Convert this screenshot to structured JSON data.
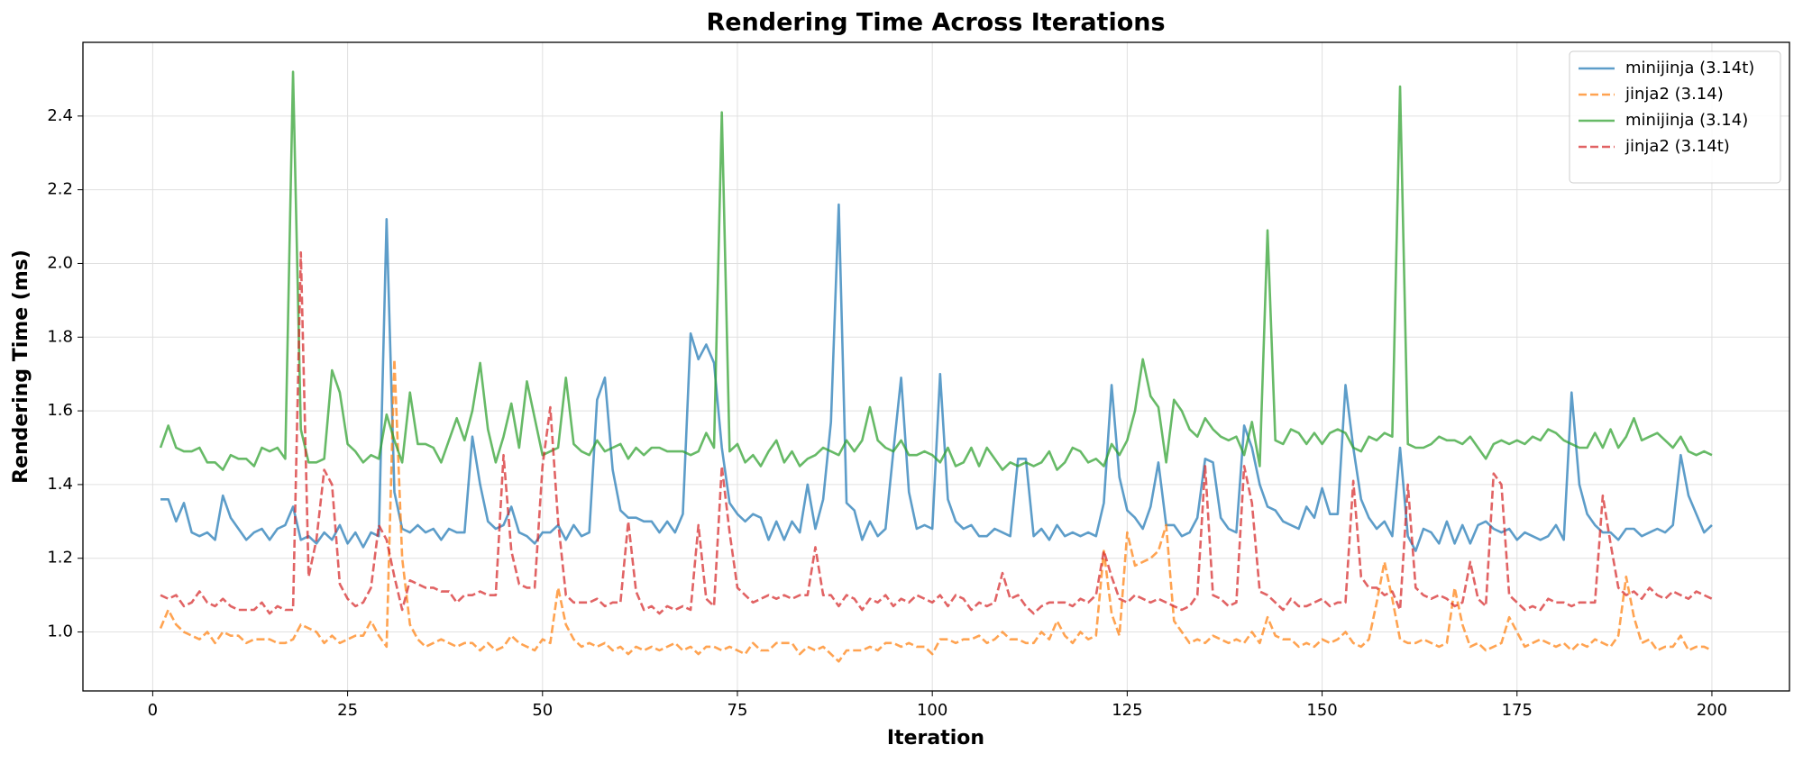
{
  "chart_data": {
    "type": "line",
    "title": "Rendering Time Across Iterations",
    "x_label": "Iteration",
    "y_label": "Rendering Time (ms)",
    "x": [
      1,
      2,
      3,
      4,
      5,
      6,
      7,
      8,
      9,
      10,
      11,
      12,
      13,
      14,
      15,
      16,
      17,
      18,
      19,
      20,
      21,
      22,
      23,
      24,
      25,
      26,
      27,
      28,
      29,
      30,
      31,
      32,
      33,
      34,
      35,
      36,
      37,
      38,
      39,
      40,
      41,
      42,
      43,
      44,
      45,
      46,
      47,
      48,
      49,
      50,
      51,
      52,
      53,
      54,
      55,
      56,
      57,
      58,
      59,
      60,
      61,
      62,
      63,
      64,
      65,
      66,
      67,
      68,
      69,
      70,
      71,
      72,
      73,
      74,
      75,
      76,
      77,
      78,
      79,
      80,
      81,
      82,
      83,
      84,
      85,
      86,
      87,
      88,
      89,
      90,
      91,
      92,
      93,
      94,
      95,
      96,
      97,
      98,
      99,
      100,
      101,
      102,
      103,
      104,
      105,
      106,
      107,
      108,
      109,
      110,
      111,
      112,
      113,
      114,
      115,
      116,
      117,
      118,
      119,
      120,
      121,
      122,
      123,
      124,
      125,
      126,
      127,
      128,
      129,
      130,
      131,
      132,
      133,
      134,
      135,
      136,
      137,
      138,
      139,
      140,
      141,
      142,
      143,
      144,
      145,
      146,
      147,
      148,
      149,
      150,
      151,
      152,
      153,
      154,
      155,
      156,
      157,
      158,
      159,
      160,
      161,
      162,
      163,
      164,
      165,
      166,
      167,
      168,
      169,
      170,
      171,
      172,
      173,
      174,
      175,
      176,
      177,
      178,
      179,
      180,
      181,
      182,
      183,
      184,
      185,
      186,
      187,
      188,
      189,
      190,
      191,
      192,
      193,
      194,
      195,
      196,
      197,
      198,
      199,
      200
    ],
    "series": [
      {
        "name": "minijinja (3.14t)",
        "color": "#1f77b4",
        "linestyle": "solid",
        "values": [
          1.36,
          1.36,
          1.3,
          1.35,
          1.27,
          1.26,
          1.27,
          1.25,
          1.37,
          1.31,
          1.28,
          1.25,
          1.27,
          1.28,
          1.25,
          1.28,
          1.29,
          1.34,
          1.25,
          1.26,
          1.24,
          1.27,
          1.25,
          1.29,
          1.24,
          1.27,
          1.23,
          1.27,
          1.26,
          2.12,
          1.38,
          1.28,
          1.27,
          1.29,
          1.27,
          1.28,
          1.25,
          1.28,
          1.27,
          1.27,
          1.53,
          1.4,
          1.3,
          1.28,
          1.29,
          1.34,
          1.27,
          1.26,
          1.24,
          1.27,
          1.27,
          1.29,
          1.25,
          1.29,
          1.26,
          1.27,
          1.63,
          1.69,
          1.44,
          1.33,
          1.31,
          1.31,
          1.3,
          1.3,
          1.27,
          1.3,
          1.27,
          1.32,
          1.81,
          1.74,
          1.78,
          1.73,
          1.5,
          1.35,
          1.32,
          1.3,
          1.32,
          1.31,
          1.25,
          1.3,
          1.25,
          1.3,
          1.27,
          1.4,
          1.28,
          1.36,
          1.57,
          2.16,
          1.35,
          1.33,
          1.25,
          1.3,
          1.26,
          1.28,
          1.49,
          1.69,
          1.38,
          1.28,
          1.29,
          1.28,
          1.7,
          1.36,
          1.3,
          1.28,
          1.29,
          1.26,
          1.26,
          1.28,
          1.27,
          1.26,
          1.47,
          1.47,
          1.26,
          1.28,
          1.25,
          1.29,
          1.26,
          1.27,
          1.26,
          1.27,
          1.26,
          1.35,
          1.67,
          1.42,
          1.33,
          1.31,
          1.28,
          1.34,
          1.46,
          1.29,
          1.29,
          1.26,
          1.27,
          1.31,
          1.47,
          1.46,
          1.31,
          1.28,
          1.27,
          1.56,
          1.5,
          1.4,
          1.34,
          1.33,
          1.3,
          1.29,
          1.28,
          1.34,
          1.31,
          1.39,
          1.32,
          1.32,
          1.67,
          1.5,
          1.36,
          1.31,
          1.28,
          1.3,
          1.26,
          1.5,
          1.26,
          1.22,
          1.28,
          1.27,
          1.24,
          1.3,
          1.24,
          1.29,
          1.24,
          1.29,
          1.3,
          1.28,
          1.27,
          1.28,
          1.25,
          1.27,
          1.26,
          1.25,
          1.26,
          1.29,
          1.25,
          1.65,
          1.4,
          1.32,
          1.29,
          1.27,
          1.27,
          1.25,
          1.28,
          1.28,
          1.26,
          1.27,
          1.28,
          1.27,
          1.29,
          1.48,
          1.37,
          1.32,
          1.27,
          1.29
        ]
      },
      {
        "name": "jinja2 (3.14)",
        "color": "#ff7f0e",
        "linestyle": "dashed",
        "values": [
          1.01,
          1.06,
          1.02,
          1.0,
          0.99,
          0.98,
          1.0,
          0.97,
          1.0,
          0.99,
          0.99,
          0.97,
          0.98,
          0.98,
          0.98,
          0.97,
          0.97,
          0.98,
          1.02,
          1.01,
          1.0,
          0.97,
          0.99,
          0.97,
          0.98,
          0.99,
          0.99,
          1.03,
          0.99,
          0.96,
          1.74,
          1.2,
          1.02,
          0.98,
          0.96,
          0.97,
          0.98,
          0.97,
          0.96,
          0.97,
          0.97,
          0.95,
          0.97,
          0.95,
          0.96,
          0.99,
          0.97,
          0.96,
          0.95,
          0.98,
          0.97,
          1.12,
          1.02,
          0.98,
          0.96,
          0.97,
          0.96,
          0.97,
          0.95,
          0.96,
          0.94,
          0.96,
          0.95,
          0.96,
          0.95,
          0.96,
          0.97,
          0.95,
          0.96,
          0.94,
          0.96,
          0.96,
          0.95,
          0.96,
          0.95,
          0.94,
          0.97,
          0.95,
          0.95,
          0.97,
          0.97,
          0.97,
          0.94,
          0.96,
          0.95,
          0.96,
          0.94,
          0.92,
          0.95,
          0.95,
          0.95,
          0.96,
          0.95,
          0.97,
          0.97,
          0.96,
          0.97,
          0.96,
          0.96,
          0.94,
          0.98,
          0.98,
          0.97,
          0.98,
          0.98,
          0.99,
          0.97,
          0.98,
          1.0,
          0.98,
          0.98,
          0.97,
          0.97,
          1.0,
          0.98,
          1.03,
          0.99,
          0.97,
          1.0,
          0.98,
          0.99,
          1.22,
          1.05,
          0.99,
          1.27,
          1.18,
          1.19,
          1.2,
          1.22,
          1.29,
          1.03,
          1.0,
          0.97,
          0.98,
          0.97,
          0.99,
          0.98,
          0.97,
          0.98,
          0.97,
          1.0,
          0.97,
          1.04,
          0.99,
          0.98,
          0.98,
          0.96,
          0.97,
          0.96,
          0.98,
          0.97,
          0.98,
          1.0,
          0.97,
          0.96,
          0.98,
          1.08,
          1.19,
          1.09,
          0.98,
          0.97,
          0.97,
          0.98,
          0.97,
          0.96,
          0.97,
          1.12,
          1.02,
          0.96,
          0.97,
          0.95,
          0.96,
          0.97,
          1.04,
          1.0,
          0.96,
          0.97,
          0.98,
          0.97,
          0.96,
          0.97,
          0.95,
          0.97,
          0.96,
          0.98,
          0.97,
          0.96,
          0.99,
          1.15,
          1.04,
          0.97,
          0.98,
          0.95,
          0.96,
          0.96,
          0.99,
          0.95,
          0.96,
          0.96,
          0.95
        ]
      },
      {
        "name": "minijinja (3.14)",
        "color": "#2ca02c",
        "linestyle": "solid",
        "values": [
          1.5,
          1.56,
          1.5,
          1.49,
          1.49,
          1.5,
          1.46,
          1.46,
          1.44,
          1.48,
          1.47,
          1.47,
          1.45,
          1.5,
          1.49,
          1.5,
          1.47,
          2.52,
          1.55,
          1.46,
          1.46,
          1.47,
          1.71,
          1.65,
          1.51,
          1.49,
          1.46,
          1.48,
          1.47,
          1.59,
          1.52,
          1.46,
          1.65,
          1.51,
          1.51,
          1.5,
          1.46,
          1.52,
          1.58,
          1.52,
          1.6,
          1.73,
          1.55,
          1.46,
          1.53,
          1.62,
          1.5,
          1.68,
          1.58,
          1.48,
          1.49,
          1.5,
          1.69,
          1.51,
          1.49,
          1.48,
          1.52,
          1.49,
          1.5,
          1.51,
          1.47,
          1.5,
          1.48,
          1.5,
          1.5,
          1.49,
          1.49,
          1.49,
          1.48,
          1.49,
          1.54,
          1.5,
          2.41,
          1.49,
          1.51,
          1.46,
          1.48,
          1.45,
          1.49,
          1.52,
          1.46,
          1.49,
          1.45,
          1.47,
          1.48,
          1.5,
          1.49,
          1.48,
          1.52,
          1.49,
          1.52,
          1.61,
          1.52,
          1.5,
          1.49,
          1.52,
          1.48,
          1.48,
          1.49,
          1.48,
          1.46,
          1.5,
          1.45,
          1.46,
          1.5,
          1.45,
          1.5,
          1.47,
          1.44,
          1.46,
          1.45,
          1.46,
          1.45,
          1.46,
          1.49,
          1.44,
          1.46,
          1.5,
          1.49,
          1.46,
          1.47,
          1.45,
          1.51,
          1.48,
          1.52,
          1.6,
          1.74,
          1.64,
          1.61,
          1.46,
          1.63,
          1.6,
          1.55,
          1.53,
          1.58,
          1.55,
          1.53,
          1.52,
          1.53,
          1.48,
          1.57,
          1.45,
          2.09,
          1.52,
          1.51,
          1.55,
          1.54,
          1.51,
          1.54,
          1.51,
          1.54,
          1.55,
          1.54,
          1.5,
          1.49,
          1.53,
          1.52,
          1.54,
          1.53,
          2.48,
          1.51,
          1.5,
          1.5,
          1.51,
          1.53,
          1.52,
          1.52,
          1.51,
          1.53,
          1.5,
          1.47,
          1.51,
          1.52,
          1.51,
          1.52,
          1.51,
          1.53,
          1.52,
          1.55,
          1.54,
          1.52,
          1.51,
          1.5,
          1.5,
          1.54,
          1.5,
          1.55,
          1.5,
          1.53,
          1.58,
          1.52,
          1.53,
          1.54,
          1.52,
          1.5,
          1.53,
          1.49,
          1.48,
          1.49,
          1.48
        ]
      },
      {
        "name": "jinja2 (3.14t)",
        "color": "#d62728",
        "linestyle": "dashed",
        "values": [
          1.1,
          1.09,
          1.1,
          1.07,
          1.08,
          1.11,
          1.08,
          1.07,
          1.09,
          1.07,
          1.06,
          1.06,
          1.06,
          1.08,
          1.05,
          1.07,
          1.06,
          1.06,
          2.03,
          1.15,
          1.25,
          1.44,
          1.4,
          1.13,
          1.09,
          1.07,
          1.08,
          1.12,
          1.29,
          1.25,
          1.15,
          1.06,
          1.14,
          1.13,
          1.12,
          1.12,
          1.11,
          1.11,
          1.08,
          1.1,
          1.1,
          1.11,
          1.1,
          1.1,
          1.48,
          1.22,
          1.13,
          1.12,
          1.12,
          1.45,
          1.61,
          1.3,
          1.1,
          1.08,
          1.08,
          1.08,
          1.09,
          1.07,
          1.08,
          1.08,
          1.3,
          1.11,
          1.06,
          1.07,
          1.05,
          1.07,
          1.06,
          1.07,
          1.06,
          1.29,
          1.09,
          1.07,
          1.45,
          1.27,
          1.12,
          1.1,
          1.08,
          1.09,
          1.1,
          1.09,
          1.1,
          1.09,
          1.1,
          1.1,
          1.23,
          1.1,
          1.1,
          1.07,
          1.1,
          1.09,
          1.06,
          1.09,
          1.08,
          1.1,
          1.07,
          1.09,
          1.08,
          1.1,
          1.09,
          1.08,
          1.1,
          1.07,
          1.1,
          1.09,
          1.06,
          1.08,
          1.07,
          1.08,
          1.16,
          1.09,
          1.1,
          1.07,
          1.05,
          1.07,
          1.08,
          1.08,
          1.08,
          1.07,
          1.09,
          1.08,
          1.1,
          1.22,
          1.15,
          1.09,
          1.08,
          1.1,
          1.09,
          1.08,
          1.09,
          1.08,
          1.07,
          1.06,
          1.07,
          1.1,
          1.45,
          1.1,
          1.09,
          1.07,
          1.08,
          1.45,
          1.35,
          1.11,
          1.1,
          1.08,
          1.06,
          1.09,
          1.07,
          1.07,
          1.08,
          1.09,
          1.07,
          1.08,
          1.08,
          1.41,
          1.15,
          1.12,
          1.12,
          1.1,
          1.11,
          1.06,
          1.4,
          1.12,
          1.1,
          1.09,
          1.1,
          1.09,
          1.07,
          1.08,
          1.19,
          1.09,
          1.07,
          1.43,
          1.4,
          1.1,
          1.08,
          1.06,
          1.07,
          1.06,
          1.09,
          1.08,
          1.08,
          1.07,
          1.08,
          1.08,
          1.08,
          1.37,
          1.24,
          1.12,
          1.1,
          1.11,
          1.09,
          1.12,
          1.1,
          1.09,
          1.11,
          1.1,
          1.09,
          1.11,
          1.1,
          1.09
        ]
      }
    ],
    "xlim": [
      -8.95,
      209.95
    ],
    "xticks": [
      0,
      25,
      50,
      75,
      100,
      125,
      150,
      175,
      200
    ],
    "ylim": [
      0.84,
      2.6
    ],
    "yticks": [
      {
        "value": 1,
        "label": "1.0"
      },
      1.2,
      1.4,
      1.6,
      1.8,
      {
        "value": 2,
        "label": "2.0"
      },
      2.2,
      2.4
    ],
    "grid": true,
    "legend": "upper right"
  }
}
